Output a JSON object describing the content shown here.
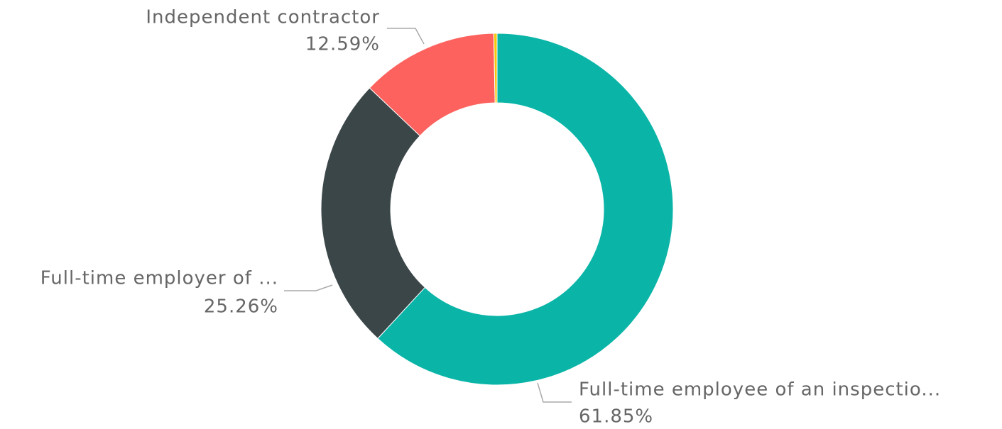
{
  "chart_data": {
    "type": "donut",
    "categories": [
      "Full-time employee of an inspectio...",
      "Full-time employer of ...",
      "Independent contractor",
      null
    ],
    "values": [
      61.85,
      25.26,
      12.59,
      0.3
    ],
    "value_labels": [
      "61.85%",
      "25.26%",
      "12.59%",
      null
    ],
    "colors": [
      "#0ab5a8",
      "#3b4648",
      "#fd625e",
      "#f2c80f"
    ]
  }
}
